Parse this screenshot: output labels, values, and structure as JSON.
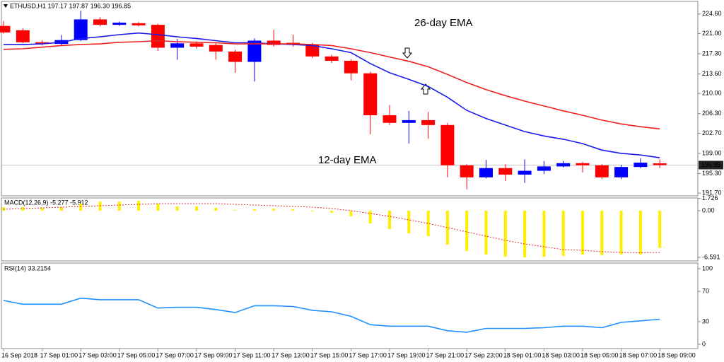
{
  "chart_data": [
    {
      "type": "candlestick",
      "title": "ETHUSD,H1  197.17 197.87 196.30 196.85",
      "categories": [
        "16 Sep 2018",
        null,
        "17 Sep 01:00",
        null,
        "17 Sep 03:00",
        null,
        "17 Sep 05:00",
        null,
        "17 Sep 07:00",
        null,
        "17 Sep 09:00",
        null,
        "17 Sep 11:00",
        null,
        "17 Sep 13:00",
        null,
        "17 Sep 15:00",
        null,
        "17 Sep 17:00",
        null,
        "17 Sep 19:00",
        null,
        "17 Sep 21:00",
        null,
        "17 Sep 23:00",
        null,
        "18 Sep 01:00",
        null,
        "18 Sep 03:00",
        null,
        "18 Sep 05:00",
        null,
        "18 Sep 07:00",
        null,
        "18 Sep 09:00"
      ],
      "open": [
        222.4,
        221.6,
        219.4,
        219.1,
        219.8,
        223.6,
        222.6,
        222.9,
        222.6,
        218.4,
        219.2,
        218.9,
        217.7,
        215.8,
        219.7,
        219.3,
        219.0,
        216.8,
        216.0,
        213.7,
        206.0,
        204.6,
        205.1,
        204.2,
        196.8,
        194.6,
        196.3,
        195.1,
        195.8,
        196.6,
        197.2,
        196.8,
        194.6,
        196.5,
        197.17
      ],
      "high": [
        223.3,
        222.0,
        219.8,
        220.7,
        225.2,
        224.0,
        223.2,
        223.1,
        222.8,
        220.0,
        219.6,
        219.4,
        218.0,
        220.1,
        221.7,
        220.8,
        219.3,
        217.1,
        216.3,
        214.0,
        207.9,
        206.8,
        206.6,
        204.6,
        197.0,
        197.8,
        197.0,
        197.9,
        197.6,
        197.6,
        197.4,
        197.0,
        196.9,
        198.1,
        197.87
      ],
      "low": [
        221.0,
        219.2,
        218.8,
        218.8,
        219.6,
        222.3,
        222.4,
        222.3,
        217.8,
        216.2,
        218.2,
        216.2,
        213.8,
        212.2,
        218.6,
        218.6,
        216.5,
        215.6,
        212.4,
        202.5,
        204.2,
        200.8,
        201.7,
        194.6,
        192.4,
        194.4,
        193.9,
        193.6,
        195.2,
        196.4,
        195.5,
        194.3,
        194.3,
        196.3,
        196.3
      ],
      "close": [
        221.2,
        219.4,
        219.1,
        219.8,
        223.6,
        222.6,
        223.0,
        222.5,
        218.4,
        219.2,
        218.6,
        217.7,
        215.8,
        219.7,
        218.9,
        219.0,
        216.8,
        216.0,
        213.7,
        206.0,
        204.6,
        205.1,
        204.2,
        196.8,
        194.6,
        196.3,
        195.1,
        195.8,
        196.6,
        197.2,
        196.8,
        194.6,
        196.5,
        197.3,
        196.85
      ],
      "up_color": "#0000ff",
      "down_color": "#ff0000",
      "series": [
        {
          "name": "12-day EMA",
          "color": "#1a1aee",
          "values": [
            219.0,
            219.0,
            219.1,
            219.4,
            220.1,
            220.4,
            220.8,
            221.1,
            220.8,
            220.4,
            220.1,
            219.7,
            219.3,
            219.3,
            219.1,
            219.0,
            218.8,
            218.2,
            217.5,
            215.5,
            213.8,
            212.6,
            211.3,
            209.3,
            206.9,
            205.4,
            204.2,
            203.0,
            202.2,
            201.6,
            200.8,
            199.6,
            199.0,
            198.7,
            198.2
          ]
        },
        {
          "name": "26-day EMA",
          "color": "#ee2020",
          "values": [
            218.1,
            218.2,
            218.5,
            218.8,
            219.0,
            219.1,
            219.4,
            219.5,
            219.7,
            219.5,
            219.4,
            219.3,
            219.1,
            219.1,
            219.1,
            219.1,
            219.0,
            218.8,
            218.2,
            217.5,
            216.7,
            215.9,
            214.9,
            213.5,
            212.0,
            210.7,
            209.6,
            208.6,
            207.7,
            206.8,
            206.0,
            205.1,
            204.4,
            203.9,
            203.5
          ]
        }
      ],
      "last_price": 196.85,
      "ylim": [
        191.2,
        226.9
      ],
      "yticks": [
        {
          "value": 224.6,
          "label": "224.60"
        },
        {
          "value": 221,
          "label": "221.00"
        },
        {
          "value": 217.3,
          "label": "217.30"
        },
        {
          "value": 213.6,
          "label": "213.60"
        },
        {
          "value": 210,
          "label": "210.00"
        },
        {
          "value": 206.3,
          "label": "206.30"
        },
        {
          "value": 202.7,
          "label": "202.70"
        },
        {
          "value": 199,
          "label": "199.00"
        },
        {
          "value": 195.3,
          "label": "195.30"
        },
        {
          "value": 191.7,
          "label": "191.70"
        }
      ]
    },
    {
      "type": "macd",
      "title": "MACD(12,26,9) -5.277 -5.912",
      "histogram": {
        "color": "#ffee00",
        "values": [
          0.5,
          0.5,
          0.4,
          0.5,
          1.0,
          1.3,
          1.3,
          1.4,
          1.0,
          0.6,
          0.6,
          0.4,
          0.1,
          0.2,
          0.3,
          0.2,
          -0.1,
          -0.3,
          -0.8,
          -1.8,
          -2.6,
          -3.2,
          -3.6,
          -4.8,
          -5.7,
          -6.2,
          -6.5,
          -6.6,
          -6.5,
          -6.4,
          -6.2,
          -6.3,
          -6.2,
          -6.2,
          -5.277
        ]
      },
      "signal": {
        "color": "#e03030",
        "values": [
          0.2,
          0.3,
          0.4,
          0.5,
          0.6,
          0.7,
          0.8,
          0.9,
          1.0,
          1.0,
          1.0,
          1.0,
          0.9,
          0.8,
          0.7,
          0.6,
          0.5,
          0.3,
          0.0,
          -0.4,
          -0.8,
          -1.3,
          -1.8,
          -2.4,
          -3.0,
          -3.6,
          -4.2,
          -4.7,
          -5.1,
          -5.5,
          -5.6,
          -5.8,
          -5.9,
          -5.95,
          -5.912
        ]
      },
      "ylim": [
        -7.1,
        1.8
      ],
      "yticks": [
        1.726,
        {
          "value": 0,
          "label": "0.00"
        },
        -6.591
      ]
    },
    {
      "type": "line",
      "title": "RSI(14) 33.2154",
      "color": "#1e90ff",
      "values": [
        58,
        53,
        53,
        53,
        61,
        59,
        59,
        59,
        48,
        49,
        49,
        46,
        42,
        51,
        51,
        50,
        45,
        43,
        37,
        26,
        24,
        24,
        24,
        18,
        16,
        21,
        21,
        21,
        22,
        24,
        24,
        22,
        29,
        31,
        33.2154
      ],
      "ylim": [
        -5.6,
        107.5
      ],
      "yticks": [
        100,
        70,
        30,
        0
      ]
    }
  ]
}
